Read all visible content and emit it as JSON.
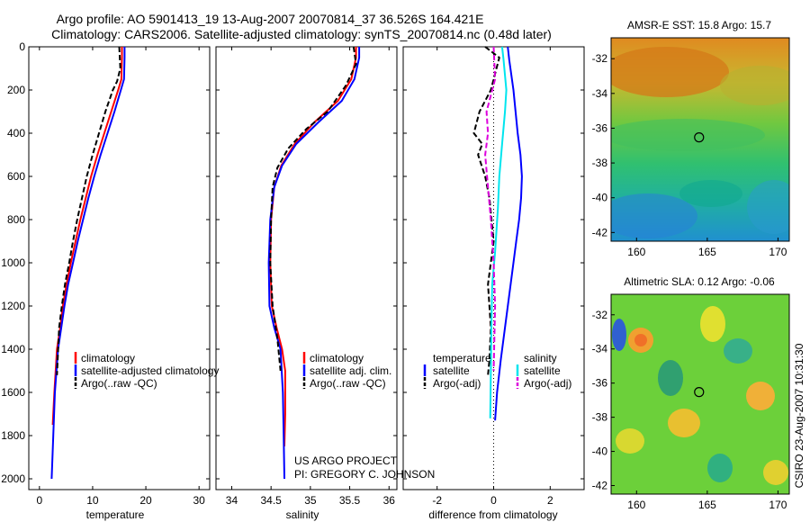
{
  "title_line1": "Argo profile: AO 5901413_19 13-Aug-2007 20070814_37 36.526S 164.421E",
  "title_line2": "Climatology: CARS2006. Satellite-adjusted climatology: synTS_20070814.nc (0.48d later)",
  "side_credit": "CSIRO 23-Aug-2007 10:31:30",
  "project_line1": "US ARGO PROJECT",
  "project_line2": "PI: GREGORY C. JOHNSON",
  "colors": {
    "climatology": "#ff0000",
    "satellite": "#0000ff",
    "argo": "#000000",
    "salinity_satellite": "#00e5ee",
    "salinity_argo": "#dd00dd"
  },
  "chart_data": [
    {
      "type": "line",
      "id": "temperature",
      "xlabel": "temperature",
      "ylabel": "",
      "xlim": [
        -2,
        32
      ],
      "ylim": [
        2050,
        0
      ],
      "xticks": [
        0,
        10,
        20,
        30
      ],
      "yticks": [
        0,
        200,
        400,
        600,
        800,
        1000,
        1200,
        1400,
        1600,
        1800,
        2000
      ],
      "legend": [
        "climatology",
        "satellite-adjusted climatology",
        "Argo(..raw -QC)"
      ],
      "series": [
        {
          "name": "climatology",
          "color": "#ff0000",
          "style": "solid",
          "x": [
            15.5,
            15.5,
            15.4,
            14.8,
            13.5,
            12.2,
            10.9,
            9.7,
            8.7,
            7.7,
            6.8,
            5.9,
            5.1,
            4.4,
            3.9,
            3.3,
            2.8,
            2.5
          ],
          "y": [
            0,
            50,
            150,
            200,
            300,
            400,
            500,
            600,
            700,
            800,
            900,
            1000,
            1100,
            1200,
            1300,
            1400,
            1600,
            1750
          ]
        },
        {
          "name": "satellite-adjusted climatology",
          "color": "#0000ff",
          "style": "solid",
          "x": [
            16.0,
            16.0,
            15.9,
            15.3,
            14.1,
            12.8,
            11.5,
            10.3,
            9.2,
            8.2,
            7.2,
            6.3,
            5.4,
            4.7,
            4.1,
            3.5,
            2.9,
            2.6,
            2.3
          ],
          "y": [
            0,
            50,
            150,
            200,
            300,
            400,
            500,
            600,
            700,
            800,
            900,
            1000,
            1100,
            1200,
            1300,
            1400,
            1600,
            1800,
            2000
          ]
        },
        {
          "name": "Argo(..raw -QC)",
          "color": "#000000",
          "style": "dashed",
          "x": [
            15.0,
            15.2,
            14.6,
            13.8,
            12.4,
            11.2,
            10.0,
            8.9,
            8.0,
            7.1,
            6.3,
            5.6,
            4.8,
            4.2,
            3.7,
            3.3
          ],
          "y": [
            0,
            100,
            160,
            200,
            300,
            400,
            500,
            600,
            700,
            800,
            900,
            1000,
            1100,
            1200,
            1300,
            1520
          ]
        }
      ]
    },
    {
      "type": "line",
      "id": "salinity",
      "xlabel": "salinity",
      "ylabel": "",
      "xlim": [
        33.8,
        36.1
      ],
      "ylim": [
        2050,
        0
      ],
      "xticks": [
        34,
        34.5,
        35,
        35.5,
        36
      ],
      "xticklabels": [
        "34",
        "34.5",
        "35",
        "35.5",
        "36"
      ],
      "legend": [
        "climatology",
        "satellite adj. clim.",
        "Argo(..raw -QC)"
      ],
      "series": [
        {
          "name": "climatology",
          "color": "#ff0000",
          "style": "solid",
          "x": [
            35.58,
            35.58,
            35.52,
            35.35,
            35.05,
            34.8,
            34.63,
            34.54,
            34.5,
            34.49,
            34.51,
            34.57,
            34.64,
            34.68,
            34.68,
            34.67
          ],
          "y": [
            0,
            50,
            150,
            250,
            350,
            450,
            550,
            650,
            800,
            1000,
            1200,
            1300,
            1400,
            1500,
            1700,
            1850
          ]
        },
        {
          "name": "satellite adj. clim.",
          "color": "#0000ff",
          "style": "solid",
          "x": [
            35.62,
            35.62,
            35.56,
            35.4,
            35.1,
            34.82,
            34.64,
            34.54,
            34.49,
            34.47,
            34.48,
            34.54,
            34.62,
            34.65,
            34.66,
            34.67
          ],
          "y": [
            0,
            50,
            150,
            250,
            350,
            450,
            550,
            650,
            800,
            1000,
            1200,
            1300,
            1400,
            1600,
            1800,
            2000
          ]
        },
        {
          "name": "Argo(..raw -QC)",
          "color": "#000000",
          "style": "dashed",
          "x": [
            35.55,
            35.58,
            35.45,
            35.22,
            34.95,
            34.72,
            34.58,
            34.52,
            34.5,
            34.49,
            34.52,
            34.58,
            34.62
          ],
          "y": [
            0,
            80,
            180,
            300,
            380,
            470,
            560,
            650,
            800,
            1000,
            1200,
            1350,
            1500
          ]
        }
      ]
    },
    {
      "type": "line",
      "id": "difference",
      "xlabel": "difference from climatology",
      "ylabel": "",
      "xlim": [
        -3.2,
        3.2
      ],
      "ylim": [
        2050,
        0
      ],
      "xticks": [
        -2,
        0,
        2
      ],
      "legend": [
        "temperature",
        "satellite",
        "Argo(-adj)",
        "salinity",
        "satellite",
        "Argo(-adj)"
      ],
      "series": [
        {
          "name": "temperature satellite",
          "color": "#0000ff",
          "style": "solid",
          "x": [
            0.5,
            0.55,
            0.7,
            0.85,
            0.95,
            1.0,
            0.97,
            0.9,
            0.8,
            0.7,
            0.55,
            0.4,
            0.25,
            0.12,
            0.05
          ],
          "y": [
            0,
            60,
            200,
            400,
            500,
            600,
            700,
            800,
            900,
            1000,
            1150,
            1300,
            1450,
            1600,
            1730
          ]
        },
        {
          "name": "temperature Argo(-adj)",
          "color": "#000000",
          "style": "dashed",
          "x": [
            -0.3,
            0.2,
            -0.1,
            -0.5,
            -0.7,
            -0.4,
            -0.55,
            -0.3,
            -0.15,
            0.0,
            -0.2,
            -0.1,
            -0.15,
            -0.2
          ],
          "y": [
            0,
            50,
            200,
            300,
            400,
            450,
            500,
            600,
            700,
            900,
            1100,
            1300,
            1450,
            1520
          ]
        },
        {
          "name": "salinity satellite",
          "color": "#00e5ee",
          "style": "solid",
          "x": [
            0.3,
            0.35,
            0.45,
            0.4,
            0.3,
            0.2,
            0.15,
            0.05,
            -0.05,
            -0.08,
            -0.1,
            -0.12
          ],
          "y": [
            0,
            60,
            200,
            300,
            450,
            600,
            750,
            950,
            1100,
            1300,
            1500,
            1720
          ]
        },
        {
          "name": "salinity Argo(-adj)",
          "color": "#dd00dd",
          "style": "dashed",
          "x": [
            0.0,
            0.05,
            -0.25,
            -0.2,
            -0.3,
            -0.2,
            -0.1,
            0.0,
            0.05,
            0.0
          ],
          "y": [
            0,
            150,
            300,
            400,
            500,
            650,
            800,
            1000,
            1200,
            1500
          ]
        }
      ]
    },
    {
      "type": "heatmap",
      "id": "sst_map",
      "title": "AMSR-E SST: 15.8 Argo: 15.7",
      "xlim": [
        158.2,
        170.8
      ],
      "ylim": [
        -42.5,
        -30.8
      ],
      "xticks": [
        160,
        165,
        170
      ],
      "yticks": [
        -32,
        -34,
        -36,
        -38,
        -40,
        -42
      ],
      "marker": {
        "lon": 164.421,
        "lat": -36.526
      }
    },
    {
      "type": "heatmap",
      "id": "sla_map",
      "title": "Altimetric SLA: 0.12 Argo: -0.06",
      "xlim": [
        158.2,
        170.8
      ],
      "ylim": [
        -42.5,
        -30.8
      ],
      "xticks": [
        160,
        165,
        170
      ],
      "yticks": [
        -32,
        -34,
        -36,
        -38,
        -40,
        -42
      ],
      "marker": {
        "lon": 164.421,
        "lat": -36.526
      }
    }
  ]
}
